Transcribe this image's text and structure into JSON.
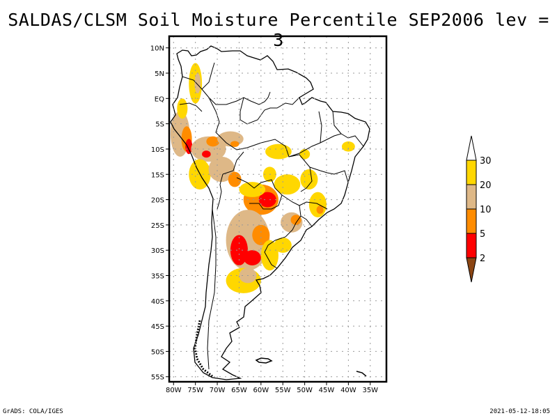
{
  "title": "SALDAS/CLSM Soil Moisture Percentile SEP2006 lev = 3",
  "footer": {
    "credit": "GrADS: COLA/IGES",
    "timestamp": "2021-05-12-18:05"
  },
  "map": {
    "region": "South America",
    "lon_range": [
      -81,
      -31.3
    ],
    "lat_range": [
      -56,
      12.3
    ],
    "lon_ticks": [
      {
        "value": -80,
        "label": "80W"
      },
      {
        "value": -75,
        "label": "75W"
      },
      {
        "value": -70,
        "label": "70W"
      },
      {
        "value": -65,
        "label": "65W"
      },
      {
        "value": -60,
        "label": "60W"
      },
      {
        "value": -55,
        "label": "55W"
      },
      {
        "value": -50,
        "label": "50W"
      },
      {
        "value": -45,
        "label": "45W"
      },
      {
        "value": -40,
        "label": "40W"
      },
      {
        "value": -35,
        "label": "35W"
      }
    ],
    "lat_ticks": [
      {
        "value": 10,
        "label": "10N"
      },
      {
        "value": 5,
        "label": "5N"
      },
      {
        "value": 0,
        "label": "EQ"
      },
      {
        "value": -5,
        "label": "5S"
      },
      {
        "value": -10,
        "label": "10S"
      },
      {
        "value": -15,
        "label": "15S"
      },
      {
        "value": -20,
        "label": "20S"
      },
      {
        "value": -25,
        "label": "25S"
      },
      {
        "value": -30,
        "label": "30S"
      },
      {
        "value": -35,
        "label": "35S"
      },
      {
        "value": -40,
        "label": "40S"
      },
      {
        "value": -45,
        "label": "45S"
      },
      {
        "value": -50,
        "label": "50S"
      },
      {
        "value": -55,
        "label": "55S"
      }
    ],
    "grid": "dotted"
  },
  "colorbar": {
    "levels": [
      "2",
      "5",
      "10",
      "20",
      "30"
    ],
    "bins": [
      {
        "range": "<2",
        "color": "#8B4513"
      },
      {
        "range": "2-5",
        "color": "#FF0000"
      },
      {
        "range": "5-10",
        "color": "#FF8C00"
      },
      {
        "range": "10-20",
        "color": "#DEB887"
      },
      {
        "range": "20-30",
        "color": "#FFD700"
      },
      {
        "range": ">30",
        "color": "#FFFFFF"
      }
    ]
  },
  "patches": [
    {
      "lon": -78.5,
      "lat": -7,
      "rx": 2.2,
      "ry": 4.5,
      "bin": 3
    },
    {
      "lon": -77,
      "lat": -8,
      "rx": 1.2,
      "ry": 2.5,
      "bin": 2
    },
    {
      "lon": -76.5,
      "lat": -9.5,
      "rx": 0.8,
      "ry": 1.5,
      "bin": 1
    },
    {
      "lon": -72,
      "lat": -10,
      "rx": 4,
      "ry": 2.5,
      "bin": 3
    },
    {
      "lon": -71,
      "lat": -8.5,
      "rx": 1.5,
      "ry": 1,
      "bin": 2
    },
    {
      "lon": -72.5,
      "lat": -11,
      "rx": 1,
      "ry": 0.7,
      "bin": 1
    },
    {
      "lon": -67,
      "lat": -8,
      "rx": 3,
      "ry": 1.5,
      "bin": 3
    },
    {
      "lon": -66,
      "lat": -9,
      "rx": 1,
      "ry": 0.6,
      "bin": 2
    },
    {
      "lon": -74,
      "lat": -15,
      "rx": 2.5,
      "ry": 3,
      "bin": 4
    },
    {
      "lon": -69,
      "lat": -14,
      "rx": 3,
      "ry": 2.5,
      "bin": 3
    },
    {
      "lon": -66,
      "lat": -16,
      "rx": 1.5,
      "ry": 1.5,
      "bin": 2
    },
    {
      "lon": -75,
      "lat": 3,
      "rx": 1.5,
      "ry": 4,
      "bin": 4
    },
    {
      "lon": -74.5,
      "lat": 3,
      "rx": 0.7,
      "ry": 2,
      "bin": 3
    },
    {
      "lon": -78,
      "lat": -2,
      "rx": 1.2,
      "ry": 2,
      "bin": 4
    },
    {
      "lon": -60,
      "lat": -20,
      "rx": 4,
      "ry": 3,
      "bin": 2
    },
    {
      "lon": -58.5,
      "lat": -20,
      "rx": 2,
      "ry": 1.5,
      "bin": 1
    },
    {
      "lon": -62,
      "lat": -18,
      "rx": 3,
      "ry": 1.5,
      "bin": 4
    },
    {
      "lon": -63,
      "lat": -28,
      "rx": 5,
      "ry": 6,
      "bin": 3
    },
    {
      "lon": -65,
      "lat": -30,
      "rx": 2,
      "ry": 3,
      "bin": 1
    },
    {
      "lon": -62,
      "lat": -31.5,
      "rx": 2,
      "ry": 1.5,
      "bin": 1
    },
    {
      "lon": -60,
      "lat": -27,
      "rx": 2,
      "ry": 2,
      "bin": 2
    },
    {
      "lon": -64,
      "lat": -36,
      "rx": 4,
      "ry": 2.5,
      "bin": 4
    },
    {
      "lon": -63,
      "lat": -35,
      "rx": 2,
      "ry": 1.5,
      "bin": 3
    },
    {
      "lon": -58,
      "lat": -31,
      "rx": 2,
      "ry": 3,
      "bin": 4
    },
    {
      "lon": -53,
      "lat": -24.5,
      "rx": 2.5,
      "ry": 2,
      "bin": 3
    },
    {
      "lon": -52,
      "lat": -24,
      "rx": 1.2,
      "ry": 1,
      "bin": 2
    },
    {
      "lon": -47,
      "lat": -21,
      "rx": 2,
      "ry": 2.5,
      "bin": 4
    },
    {
      "lon": -46.5,
      "lat": -22,
      "rx": 0.8,
      "ry": 0.8,
      "bin": 2
    },
    {
      "lon": -55,
      "lat": -29,
      "rx": 2,
      "ry": 1.5,
      "bin": 4
    },
    {
      "lon": -56,
      "lat": -10.5,
      "rx": 3,
      "ry": 1.5,
      "bin": 4
    },
    {
      "lon": -50,
      "lat": -11,
      "rx": 1.2,
      "ry": 1,
      "bin": 4
    },
    {
      "lon": -54,
      "lat": -17,
      "rx": 3,
      "ry": 2,
      "bin": 4
    },
    {
      "lon": -49,
      "lat": -16,
      "rx": 2,
      "ry": 2,
      "bin": 4
    },
    {
      "lon": -40,
      "lat": -9.5,
      "rx": 1.5,
      "ry": 1,
      "bin": 4
    },
    {
      "lon": -58,
      "lat": -15,
      "rx": 1.5,
      "ry": 1.5,
      "bin": 4
    }
  ]
}
